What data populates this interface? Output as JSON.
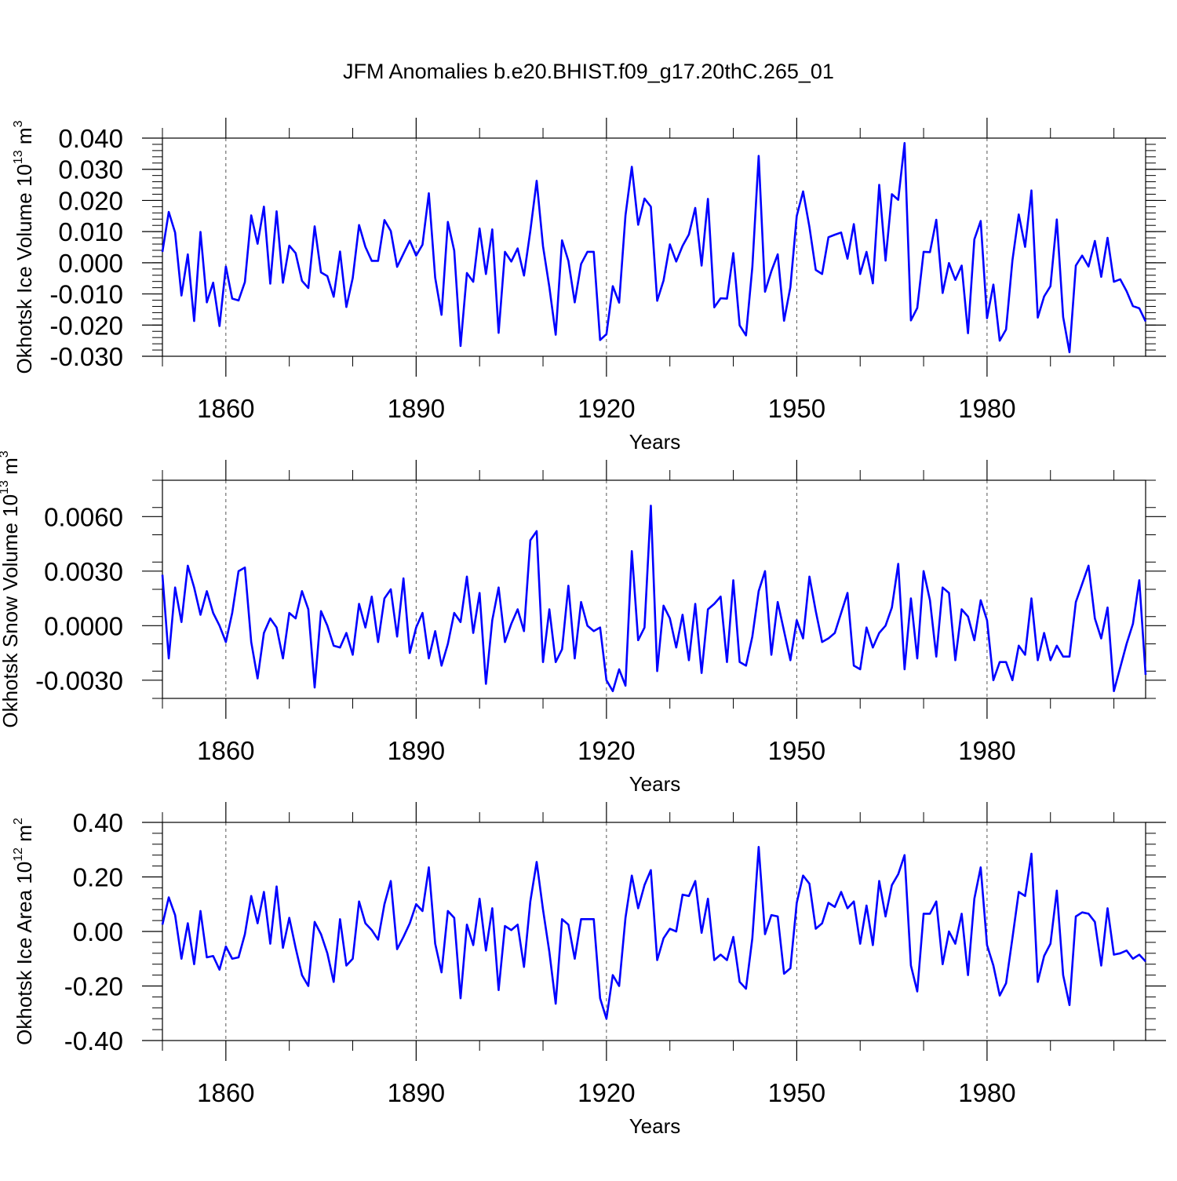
{
  "figure_title": "JFM Anomalies b.e20.BHIST.f09_g17.20thC.265_01",
  "colors": {
    "line": "#0000ff",
    "axis": "#000000",
    "gridline": "#555555"
  },
  "chart_data": [
    {
      "type": "line",
      "ylabel": {
        "text": "Okhotsk Ice Volume 10",
        "sup": "13",
        "unit": " m",
        "unit_sup": "3"
      },
      "xlabel": "Years",
      "xlim": [
        1850,
        2005
      ],
      "ylim": [
        -0.03,
        0.04
      ],
      "yticks": [
        {
          "value": -0.03,
          "label": "-0.030"
        },
        {
          "value": -0.02,
          "label": "-0.020"
        },
        {
          "value": -0.01,
          "label": "-0.010"
        },
        {
          "value": 0.0,
          "label": "0.000"
        },
        {
          "value": 0.01,
          "label": "0.010"
        },
        {
          "value": 0.02,
          "label": "0.020"
        },
        {
          "value": 0.03,
          "label": "0.030"
        },
        {
          "value": 0.04,
          "label": "0.040"
        }
      ],
      "yminor_step": 0.002,
      "xticks": [
        {
          "value": 1860,
          "label": "1860"
        },
        {
          "value": 1890,
          "label": "1890"
        },
        {
          "value": 1920,
          "label": "1920"
        },
        {
          "value": 1950,
          "label": "1950"
        },
        {
          "value": 1980,
          "label": "1980"
        }
      ],
      "xminor": [
        1850,
        1870,
        1880,
        1900,
        1910,
        1930,
        1940,
        1960,
        1970,
        1990,
        2000
      ],
      "series": [
        {
          "name": "Okhotsk Ice Volume",
          "x_start": 1850,
          "values": [
            0.0035,
            0.0163,
            0.0097,
            -0.0105,
            0.0027,
            -0.0187,
            0.0099,
            -0.0127,
            -0.0064,
            -0.0203,
            -0.0012,
            -0.0115,
            -0.0121,
            -0.0062,
            0.0152,
            0.0061,
            0.018,
            -0.0067,
            0.0165,
            -0.0064,
            0.0055,
            0.0031,
            -0.0058,
            -0.0081,
            0.0117,
            -0.0031,
            -0.0043,
            -0.0109,
            0.0036,
            -0.0142,
            -0.0049,
            0.0121,
            0.0051,
            0.0006,
            0.0006,
            0.0137,
            0.0102,
            -0.0013,
            0.0029,
            0.0071,
            0.0023,
            0.0058,
            0.0223,
            -0.0048,
            -0.0167,
            0.0131,
            0.0039,
            -0.0267,
            -0.0033,
            -0.0061,
            0.011,
            -0.0036,
            0.0107,
            -0.0225,
            0.0035,
            0.0004,
            0.0046,
            -0.0041,
            0.0102,
            0.0263,
            0.0053,
            -0.0078,
            -0.0231,
            0.0072,
            0.0006,
            -0.0127,
            -0.0004,
            0.0035,
            0.0035,
            -0.0248,
            -0.0229,
            -0.0075,
            -0.0128,
            0.0152,
            0.0308,
            0.0122,
            0.0206,
            0.018,
            -0.0122,
            -0.0057,
            0.0059,
            0.0004,
            0.0054,
            0.0091,
            0.0176,
            -0.0009,
            0.0205,
            -0.0143,
            -0.0114,
            -0.0115,
            0.0031,
            -0.0201,
            -0.0233,
            -0.0014,
            0.0343,
            -0.0093,
            -0.0027,
            0.0027,
            -0.0186,
            -0.0078,
            0.015,
            0.0229,
            0.0115,
            -0.0023,
            -0.0036,
            0.0082,
            0.009,
            0.0097,
            0.0013,
            0.0124,
            -0.0036,
            0.0035,
            -0.0066,
            0.025,
            0.0007,
            0.022,
            0.0202,
            0.0384,
            -0.0185,
            -0.0145,
            0.0035,
            0.0034,
            0.0138,
            -0.0097,
            -0.0001,
            -0.0055,
            -0.0009,
            -0.0226,
            0.0075,
            0.0134,
            -0.0178,
            -0.007,
            -0.025,
            -0.0214,
            0.0007,
            0.0155,
            0.0051,
            0.0232,
            -0.0176,
            -0.0108,
            -0.0075,
            0.0139,
            -0.0174,
            -0.0287,
            -0.0009,
            0.0023,
            -0.0012,
            0.007,
            -0.0045,
            0.008,
            -0.0061,
            -0.0053,
            -0.0091,
            -0.0139,
            -0.0146,
            -0.0188
          ]
        }
      ]
    },
    {
      "type": "line",
      "ylabel": {
        "text": "Okhotsk Snow Volume 10",
        "sup": "13",
        "unit": " m",
        "unit_sup": "3"
      },
      "xlabel": "Years",
      "xlim": [
        1850,
        2005
      ],
      "ylim": [
        -0.004,
        0.008
      ],
      "yticks": [
        {
          "value": -0.003,
          "label": "-0.0030"
        },
        {
          "value": 0.0,
          "label": "0.0000"
        },
        {
          "value": 0.003,
          "label": "0.0030"
        },
        {
          "value": 0.006,
          "label": "0.0060"
        }
      ],
      "yminor_step": 0.0015,
      "xticks": [
        {
          "value": 1860,
          "label": "1860"
        },
        {
          "value": 1890,
          "label": "1890"
        },
        {
          "value": 1920,
          "label": "1920"
        },
        {
          "value": 1950,
          "label": "1950"
        },
        {
          "value": 1980,
          "label": "1980"
        }
      ],
      "xminor": [
        1850,
        1870,
        1880,
        1900,
        1910,
        1930,
        1940,
        1960,
        1970,
        1990,
        2000
      ],
      "series": [
        {
          "name": "Okhotsk Snow Volume",
          "x_start": 1850,
          "values": [
            0.0028,
            -0.0018,
            0.0021,
            0.0002,
            0.0033,
            0.0021,
            0.0006,
            0.0019,
            0.0007,
            0.0,
            -0.0009,
            0.0007,
            0.003,
            0.0032,
            -0.0009,
            -0.0029,
            -0.0004,
            0.0004,
            -0.0001,
            -0.0018,
            0.0007,
            0.0004,
            0.0019,
            0.0009,
            -0.0034,
            0.0008,
            0.0,
            -0.0011,
            -0.0012,
            -0.0004,
            -0.0016,
            0.0012,
            -0.0001,
            0.0016,
            -0.0009,
            0.0015,
            0.002,
            -0.0006,
            0.0026,
            -0.0015,
            -0.0001,
            0.0007,
            -0.0018,
            -0.0003,
            -0.0022,
            -0.001,
            0.0007,
            0.0002,
            0.0027,
            -0.0004,
            0.0018,
            -0.0032,
            0.0003,
            0.0021,
            -0.0009,
            0.0001,
            0.0009,
            -0.0003,
            0.0047,
            0.0052,
            -0.002,
            0.0009,
            -0.002,
            -0.0013,
            0.0022,
            -0.0018,
            0.0013,
            0.0,
            -0.0003,
            -0.0001,
            -0.003,
            -0.0036,
            -0.0024,
            -0.0033,
            0.0041,
            -0.0008,
            -0.0001,
            0.0066,
            -0.0025,
            0.0011,
            0.0004,
            -0.0012,
            0.0006,
            -0.0019,
            0.0012,
            -0.0026,
            0.0009,
            0.0012,
            0.0016,
            -0.002,
            0.0025,
            -0.002,
            -0.0022,
            -0.0006,
            0.0019,
            0.003,
            -0.0016,
            0.0013,
            -0.0003,
            -0.0019,
            0.0003,
            -0.0007,
            0.0027,
            0.0008,
            -0.0009,
            -0.0007,
            -0.0004,
            0.0007,
            0.0018,
            -0.0022,
            -0.0024,
            -0.0001,
            -0.0012,
            -0.0004,
            0.0,
            0.001,
            0.0034,
            -0.0024,
            0.0015,
            -0.0018,
            0.003,
            0.0014,
            -0.0017,
            0.0021,
            0.0018,
            -0.0019,
            0.0009,
            0.0005,
            -0.0008,
            0.0014,
            0.0003,
            -0.003,
            -0.002,
            -0.002,
            -0.003,
            -0.0011,
            -0.0016,
            0.0015,
            -0.0019,
            -0.0004,
            -0.0019,
            -0.0011,
            -0.0017,
            -0.0017,
            0.0013,
            0.0023,
            0.0033,
            0.0004,
            -0.0007,
            0.001,
            -0.0036,
            -0.0023,
            -0.001,
            0.0001,
            0.0025,
            -0.0027
          ]
        }
      ]
    },
    {
      "type": "line",
      "ylabel": {
        "text": "Okhotsk Ice Area 10",
        "sup": "12",
        "unit": " m",
        "unit_sup": "2"
      },
      "xlabel": "Years",
      "xlim": [
        1850,
        2005
      ],
      "ylim": [
        -0.4,
        0.4
      ],
      "yticks": [
        {
          "value": -0.4,
          "label": "-0.40"
        },
        {
          "value": -0.2,
          "label": "-0.20"
        },
        {
          "value": 0.0,
          "label": "0.00"
        },
        {
          "value": 0.2,
          "label": "0.20"
        },
        {
          "value": 0.4,
          "label": "0.40"
        }
      ],
      "yminor_step": 0.04,
      "xticks": [
        {
          "value": 1860,
          "label": "1860"
        },
        {
          "value": 1890,
          "label": "1890"
        },
        {
          "value": 1920,
          "label": "1920"
        },
        {
          "value": 1950,
          "label": "1950"
        },
        {
          "value": 1980,
          "label": "1980"
        }
      ],
      "xminor": [
        1850,
        1870,
        1880,
        1900,
        1910,
        1930,
        1940,
        1960,
        1970,
        1990,
        2000
      ],
      "series": [
        {
          "name": "Okhotsk Ice Area",
          "x_start": 1850,
          "values": [
            0.025,
            0.125,
            0.06,
            -0.1,
            0.03,
            -0.12,
            0.075,
            -0.095,
            -0.09,
            -0.14,
            -0.055,
            -0.1,
            -0.095,
            -0.01,
            0.13,
            0.03,
            0.145,
            -0.045,
            0.165,
            -0.06,
            0.05,
            -0.06,
            -0.16,
            -0.2,
            0.035,
            -0.01,
            -0.08,
            -0.185,
            0.045,
            -0.125,
            -0.1,
            0.11,
            0.03,
            0.005,
            -0.03,
            0.1,
            0.185,
            -0.065,
            -0.02,
            0.03,
            0.1,
            0.075,
            0.235,
            -0.045,
            -0.15,
            0.075,
            0.05,
            -0.245,
            0.025,
            -0.05,
            0.12,
            -0.07,
            0.085,
            -0.215,
            0.02,
            0.005,
            0.025,
            -0.13,
            0.11,
            0.255,
            0.08,
            -0.075,
            -0.265,
            0.045,
            0.025,
            -0.1,
            0.045,
            0.045,
            0.045,
            -0.245,
            -0.32,
            -0.16,
            -0.2,
            0.05,
            0.205,
            0.085,
            0.17,
            0.225,
            -0.105,
            -0.025,
            0.01,
            0.0,
            0.135,
            0.13,
            0.185,
            -0.005,
            0.12,
            -0.105,
            -0.085,
            -0.105,
            -0.02,
            -0.185,
            -0.21,
            -0.025,
            0.31,
            -0.01,
            0.06,
            0.055,
            -0.155,
            -0.135,
            0.105,
            0.205,
            0.175,
            0.01,
            0.03,
            0.105,
            0.09,
            0.145,
            0.085,
            0.11,
            -0.045,
            0.095,
            -0.05,
            0.185,
            0.055,
            0.17,
            0.21,
            0.28,
            -0.125,
            -0.22,
            0.065,
            0.065,
            0.11,
            -0.12,
            0.0,
            -0.045,
            0.065,
            -0.16,
            0.12,
            0.235,
            -0.05,
            -0.125,
            -0.235,
            -0.19,
            -0.025,
            0.145,
            0.13,
            0.285,
            -0.185,
            -0.09,
            -0.045,
            0.15,
            -0.16,
            -0.27,
            0.055,
            0.07,
            0.065,
            0.035,
            -0.125,
            0.085,
            -0.085,
            -0.08,
            -0.07,
            -0.1,
            -0.085,
            -0.11
          ]
        }
      ]
    }
  ]
}
